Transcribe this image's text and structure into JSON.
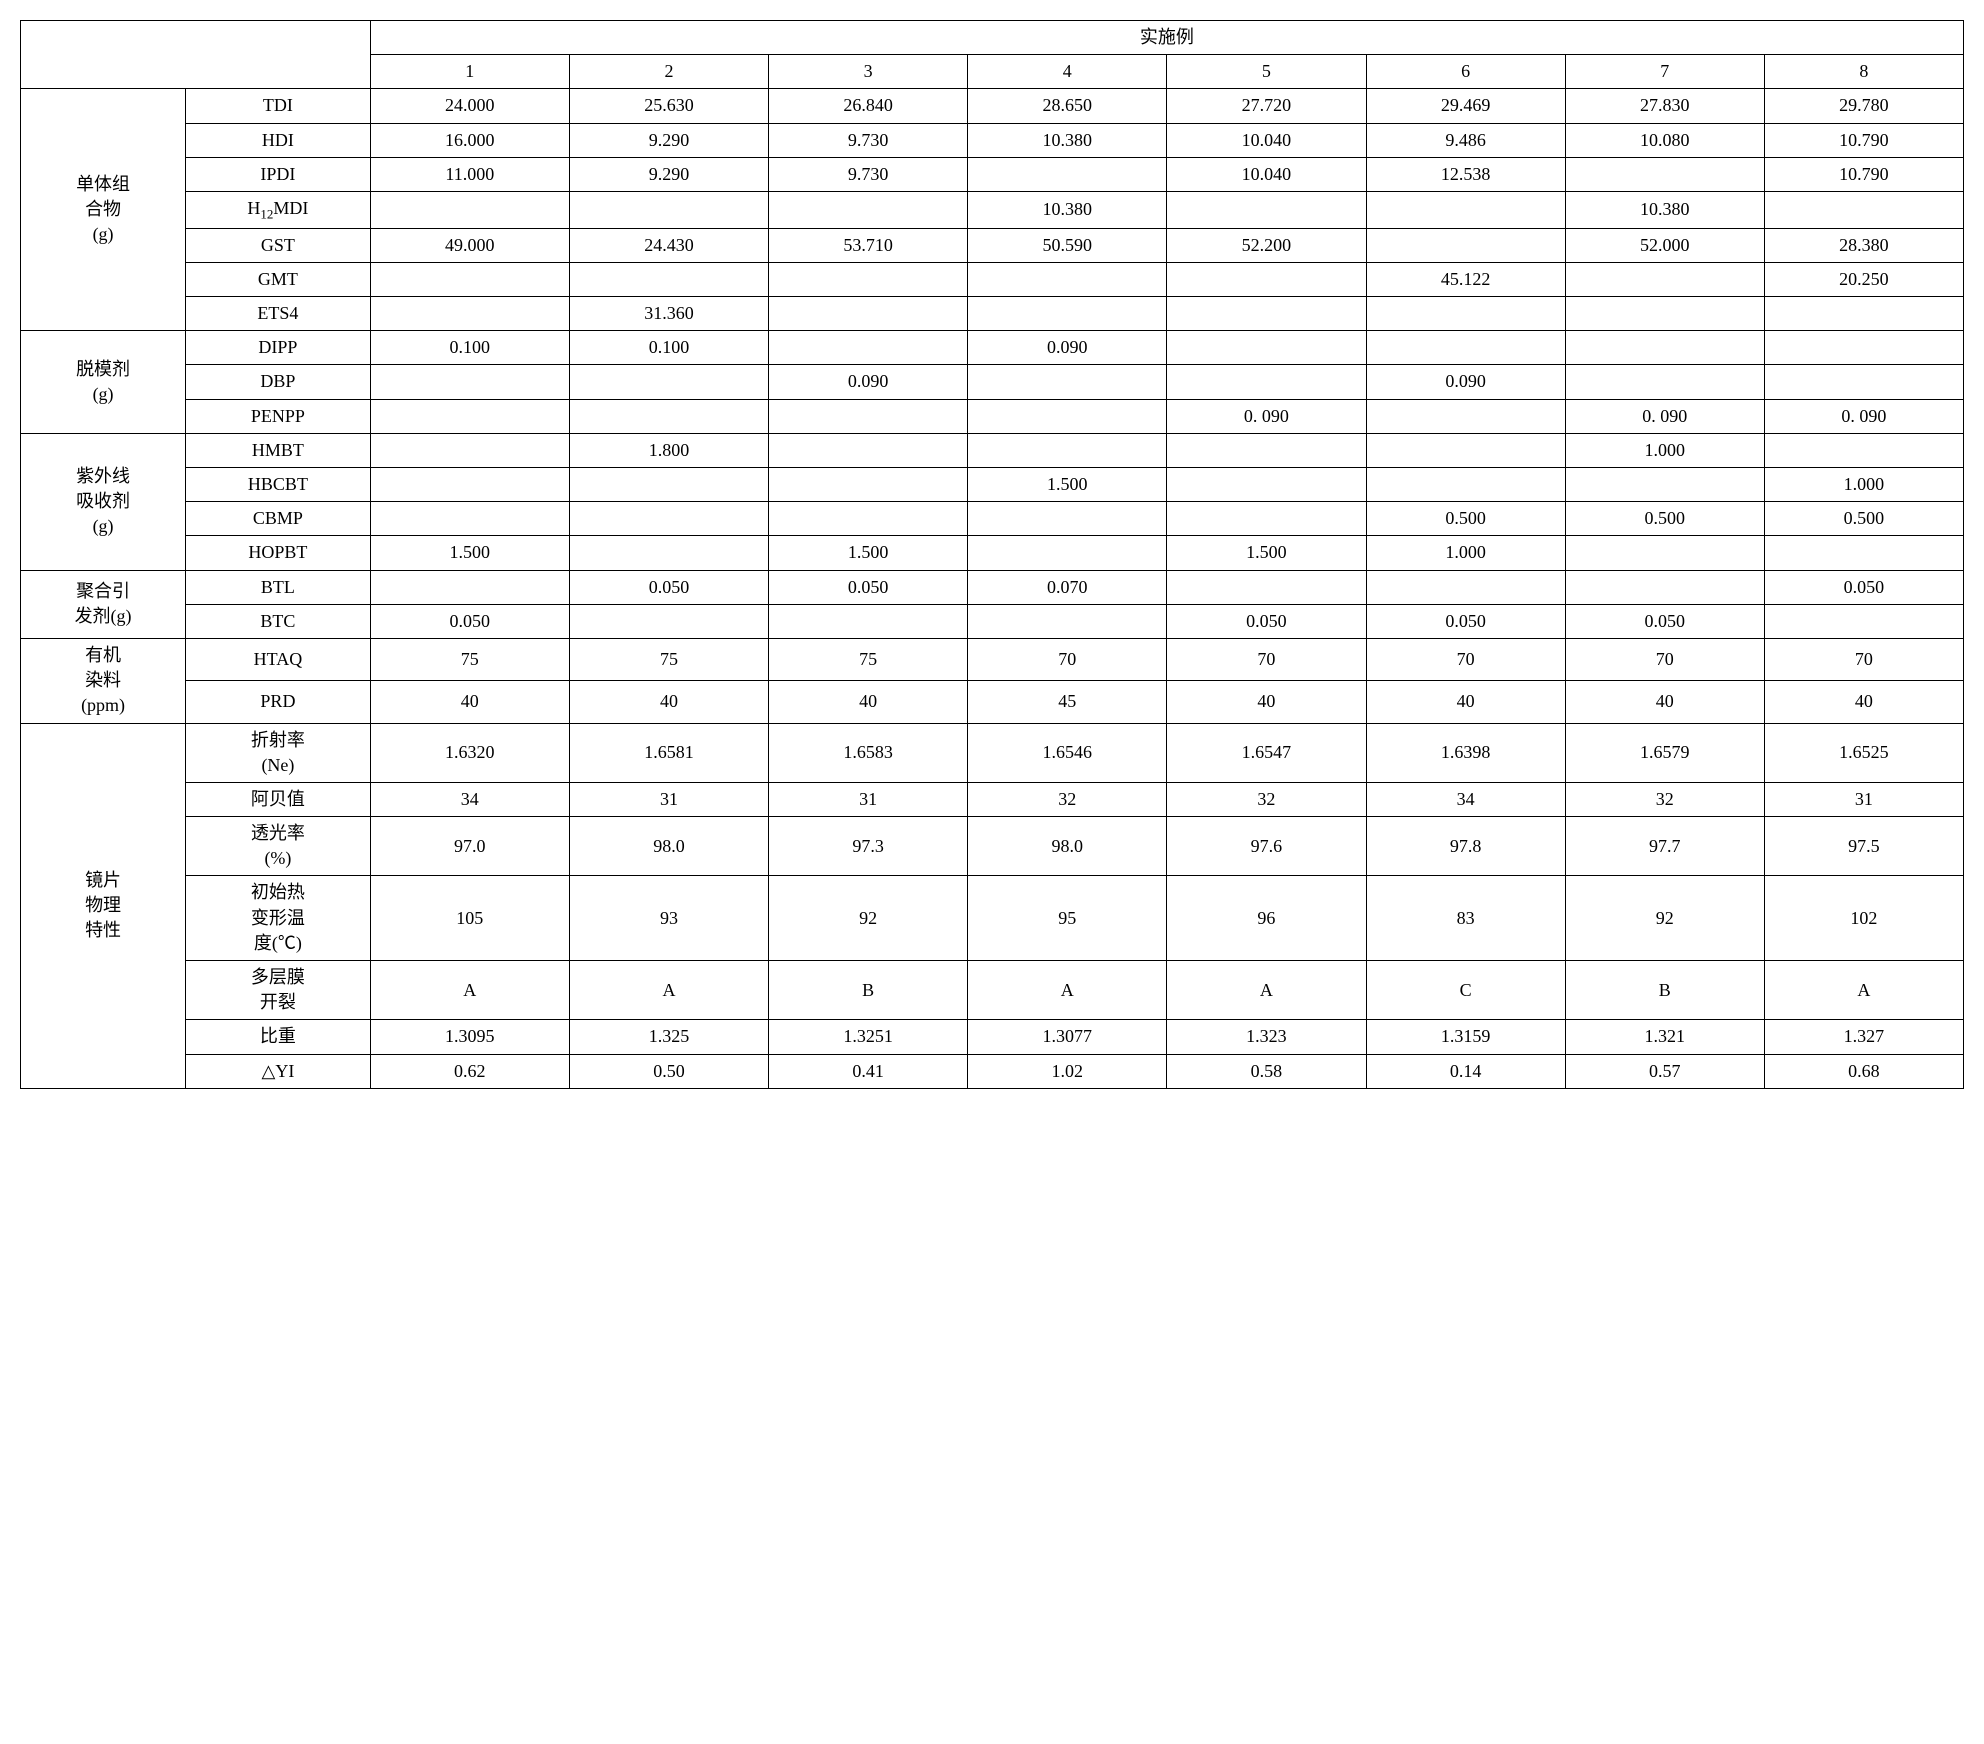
{
  "header": {
    "title": "实施例",
    "cols": [
      "1",
      "2",
      "3",
      "4",
      "5",
      "6",
      "7",
      "8"
    ]
  },
  "groups": [
    {
      "label": "单体组\n合物\n(g)",
      "rows": [
        {
          "label": "TDI",
          "v": [
            "24.000",
            "25.630",
            "26.840",
            "28.650",
            "27.720",
            "29.469",
            "27.830",
            "29.780"
          ]
        },
        {
          "label": "HDI",
          "v": [
            "16.000",
            "9.290",
            "9.730",
            "10.380",
            "10.040",
            "9.486",
            "10.080",
            "10.790"
          ]
        },
        {
          "label": "IPDI",
          "v": [
            "11.000",
            "9.290",
            "9.730",
            "",
            "10.040",
            "12.538",
            "",
            "10.790"
          ]
        },
        {
          "label": "H12MDI",
          "v": [
            "",
            "",
            "",
            "10.380",
            "",
            "",
            "10.380",
            ""
          ],
          "isH12": true
        },
        {
          "label": "GST",
          "v": [
            "49.000",
            "24.430",
            "53.710",
            "50.590",
            "52.200",
            "",
            "52.000",
            "28.380"
          ]
        },
        {
          "label": "GMT",
          "v": [
            "",
            "",
            "",
            "",
            "",
            "45.122",
            "",
            "20.250"
          ]
        },
        {
          "label": "ETS4",
          "v": [
            "",
            "31.360",
            "",
            "",
            "",
            "",
            "",
            ""
          ]
        }
      ]
    },
    {
      "label": "脱模剂\n(g)",
      "rows": [
        {
          "label": "DIPP",
          "v": [
            "0.100",
            "0.100",
            "",
            "0.090",
            "",
            "",
            "",
            ""
          ]
        },
        {
          "label": "DBP",
          "v": [
            "",
            "",
            "0.090",
            "",
            "",
            "0.090",
            "",
            ""
          ]
        },
        {
          "label": "PENPP",
          "v": [
            "",
            "",
            "",
            "",
            "0. 090",
            "",
            "0. 090",
            "0. 090"
          ]
        }
      ]
    },
    {
      "label": "紫外线\n吸收剂\n(g)",
      "rows": [
        {
          "label": "HMBT",
          "v": [
            "",
            "1.800",
            "",
            "",
            "",
            "",
            "1.000",
            ""
          ]
        },
        {
          "label": "HBCBT",
          "v": [
            "",
            "",
            "",
            "1.500",
            "",
            "",
            "",
            "1.000"
          ]
        },
        {
          "label": "CBMP",
          "v": [
            "",
            "",
            "",
            "",
            "",
            "0.500",
            "0.500",
            "0.500"
          ]
        },
        {
          "label": "HOPBT",
          "v": [
            "1.500",
            "",
            "1.500",
            "",
            "1.500",
            "1.000",
            "",
            ""
          ]
        }
      ]
    },
    {
      "label": "聚合引\n发剂(g)",
      "rows": [
        {
          "label": "BTL",
          "v": [
            "",
            "0.050",
            "0.050",
            "0.070",
            "",
            "",
            "",
            "0.050"
          ]
        },
        {
          "label": "BTC",
          "v": [
            "0.050",
            "",
            "",
            "",
            "0.050",
            "0.050",
            "0.050",
            ""
          ]
        }
      ]
    },
    {
      "label": "有机\n染料\n(ppm)",
      "rows": [
        {
          "label": "HTAQ",
          "v": [
            "75",
            "75",
            "75",
            "70",
            "70",
            "70",
            "70",
            "70"
          ]
        },
        {
          "label": "PRD",
          "v": [
            "40",
            "40",
            "40",
            "45",
            "40",
            "40",
            "40",
            "40"
          ]
        }
      ]
    },
    {
      "label": "镜片\n物理\n特性",
      "rows": [
        {
          "label": "折射率\n(Ne)",
          "v": [
            "1.6320",
            "1.6581",
            "1.6583",
            "1.6546",
            "1.6547",
            "1.6398",
            "1.6579",
            "1.6525"
          ]
        },
        {
          "label": "阿贝值",
          "v": [
            "34",
            "31",
            "31",
            "32",
            "32",
            "34",
            "32",
            "31"
          ]
        },
        {
          "label": "透光率\n(%)",
          "v": [
            "97.0",
            "98.0",
            "97.3",
            "98.0",
            "97.6",
            "97.8",
            "97.7",
            "97.5"
          ]
        },
        {
          "label": "初始热\n变形温\n度(℃)",
          "v": [
            "105",
            "93",
            "92",
            "95",
            "96",
            "83",
            "92",
            "102"
          ]
        },
        {
          "label": "多层膜\n开裂",
          "v": [
            "A",
            "A",
            "B",
            "A",
            "A",
            "C",
            "B",
            "A"
          ]
        },
        {
          "label": "比重",
          "v": [
            "1.3095",
            "1.325",
            "1.3251",
            "1.3077",
            "1.323",
            "1.3159",
            "1.321",
            "1.327"
          ]
        },
        {
          "label": "△YI",
          "v": [
            "0.62",
            "0.50",
            "0.41",
            "1.02",
            "0.58",
            "0.14",
            "0.57",
            "0.68"
          ]
        }
      ]
    }
  ]
}
